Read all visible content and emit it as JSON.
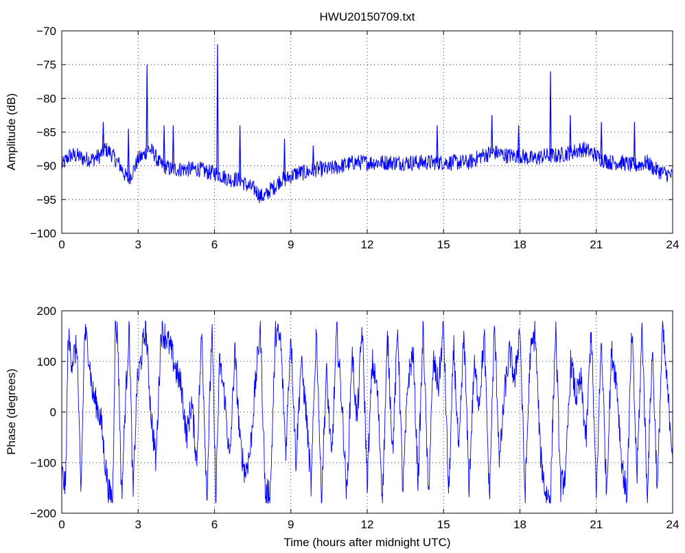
{
  "chart_data": [
    {
      "type": "line",
      "title": "HWU20150709.txt",
      "xlabel": "",
      "ylabel": "Amplitude (dB)",
      "xlim": [
        0,
        24
      ],
      "ylim": [
        -100,
        -70
      ],
      "xticks": [
        0,
        3,
        6,
        9,
        12,
        15,
        18,
        21,
        24
      ],
      "xtick_labels": [
        "0",
        "3",
        "6",
        "9",
        "12",
        "15",
        "18",
        "21",
        "24"
      ],
      "yticks": [
        -70,
        -75,
        -80,
        -85,
        -90,
        -95,
        -100
      ],
      "ytick_labels": [
        "−70",
        "−75",
        "−80",
        "−85",
        "−90",
        "−95",
        "−100"
      ],
      "grid": true,
      "line_color": "#0000ff",
      "series": [
        {
          "x": [
            0.0,
            0.3,
            0.6,
            0.9,
            1.2,
            1.5,
            1.7,
            1.9,
            2.1,
            2.3,
            2.5,
            2.6,
            2.7,
            2.9,
            3.0,
            3.2,
            3.4,
            3.6,
            3.8,
            4.0,
            4.3,
            4.6,
            5.0,
            5.4,
            5.8,
            6.0,
            6.3,
            6.6,
            7.0,
            7.3,
            7.6,
            7.8,
            8.0,
            8.2,
            8.4,
            8.6,
            8.8,
            9.0,
            9.3,
            9.6,
            10.0,
            10.5,
            11.0,
            11.5,
            12.0,
            12.5,
            13.0,
            13.5,
            14.0,
            14.5,
            15.0,
            15.5,
            16.0,
            16.5,
            17.0,
            17.5,
            18.0,
            18.5,
            19.0,
            19.5,
            20.0,
            20.5,
            20.8,
            21.2,
            21.6,
            22.0,
            22.5,
            23.0,
            23.3,
            23.6,
            24.0
          ],
          "y": [
            -90.0,
            -88.5,
            -88.5,
            -89.0,
            -89.0,
            -88.5,
            -87.5,
            -88.0,
            -89.0,
            -90.0,
            -91.5,
            -92.0,
            -91.5,
            -90.0,
            -89.0,
            -88.5,
            -87.5,
            -88.0,
            -89.5,
            -90.0,
            -90.5,
            -90.5,
            -90.5,
            -90.5,
            -91.0,
            -91.0,
            -91.5,
            -92.0,
            -92.0,
            -93.0,
            -93.5,
            -94.5,
            -94.5,
            -93.5,
            -93.0,
            -92.0,
            -92.0,
            -91.5,
            -91.0,
            -91.0,
            -90.5,
            -90.5,
            -90.0,
            -89.5,
            -89.5,
            -89.5,
            -89.5,
            -89.5,
            -89.5,
            -89.5,
            -89.5,
            -89.5,
            -89.5,
            -88.5,
            -88.0,
            -88.5,
            -88.5,
            -89.0,
            -88.5,
            -88.5,
            -88.0,
            -87.5,
            -88.0,
            -89.0,
            -89.5,
            -89.5,
            -90.0,
            -89.5,
            -90.5,
            -91.0,
            -91.5
          ]
        }
      ],
      "peaks": [
        {
          "x": 1.63,
          "y": -83.5
        },
        {
          "x": 2.62,
          "y": -84.5
        },
        {
          "x": 3.35,
          "y": -75.0
        },
        {
          "x": 4.02,
          "y": -84.0
        },
        {
          "x": 4.38,
          "y": -84.0
        },
        {
          "x": 6.12,
          "y": -72.0
        },
        {
          "x": 7.0,
          "y": -84.0
        },
        {
          "x": 8.75,
          "y": -86.0
        },
        {
          "x": 9.88,
          "y": -87.0
        },
        {
          "x": 14.75,
          "y": -84.0
        },
        {
          "x": 16.9,
          "y": -82.5
        },
        {
          "x": 17.95,
          "y": -84.0
        },
        {
          "x": 19.2,
          "y": -76.0
        },
        {
          "x": 19.98,
          "y": -82.5
        },
        {
          "x": 21.2,
          "y": -83.5
        },
        {
          "x": 22.5,
          "y": -83.5
        }
      ]
    },
    {
      "type": "line",
      "title": "",
      "xlabel": "Time (hours after midnight UTC)",
      "ylabel": "Phase (degrees)",
      "xlim": [
        0,
        24
      ],
      "ylim": [
        -200,
        200
      ],
      "xticks": [
        0,
        3,
        6,
        9,
        12,
        15,
        18,
        21,
        24
      ],
      "xtick_labels": [
        "0",
        "3",
        "6",
        "9",
        "12",
        "15",
        "18",
        "21",
        "24"
      ],
      "yticks": [
        200,
        100,
        0,
        -100,
        -200
      ],
      "ytick_labels": [
        "200",
        "100",
        "0",
        "−100",
        "−200"
      ],
      "grid": true,
      "line_color": "#0000ff",
      "series": [
        {
          "x": [
            0.0,
            0.15,
            0.25,
            0.4,
            0.6,
            0.75,
            0.9,
            1.05,
            1.2,
            1.4,
            1.55,
            1.7,
            1.85,
            2.0,
            2.1,
            2.2,
            2.35,
            2.5,
            2.65,
            2.8,
            2.95,
            3.1,
            3.3,
            3.5,
            3.7,
            3.9,
            4.1,
            4.3,
            4.5,
            4.7,
            4.9,
            5.1,
            5.3,
            5.5,
            5.7,
            5.9,
            6.05,
            6.2,
            6.4,
            6.6,
            6.8,
            7.0,
            7.2,
            7.4,
            7.6,
            7.8,
            8.0,
            8.2,
            8.4,
            8.6,
            8.8,
            9.0,
            9.2,
            9.4,
            9.6,
            9.8,
            10.0,
            10.2,
            10.4,
            10.6,
            10.8,
            11.0,
            11.2,
            11.4,
            11.6,
            11.8,
            12.0,
            12.2,
            12.4,
            12.6,
            12.8,
            13.0,
            13.2,
            13.4,
            13.6,
            13.8,
            14.0,
            14.2,
            14.4,
            14.6,
            14.8,
            15.0,
            15.2,
            15.4,
            15.6,
            15.8,
            16.0,
            16.2,
            16.4,
            16.6,
            16.8,
            17.0,
            17.2,
            17.4,
            17.6,
            17.8,
            18.0,
            18.2,
            18.4,
            18.6,
            18.8,
            19.0,
            19.2,
            19.4,
            19.6,
            19.8,
            20.0,
            20.2,
            20.4,
            20.6,
            20.8,
            21.0,
            21.2,
            21.4,
            21.6,
            21.8,
            22.0,
            22.2,
            22.4,
            22.6,
            22.8,
            23.0,
            23.2,
            23.4,
            23.6,
            23.8,
            24.0
          ],
          "y": [
            -120,
            -150,
            150,
            100,
            130,
            -170,
            160,
            120,
            40,
            10,
            -20,
            -100,
            -160,
            -170,
            170,
            150,
            -170,
            20,
            170,
            -170,
            50,
            100,
            170,
            0,
            -100,
            160,
            150,
            120,
            80,
            50,
            -50,
            20,
            -100,
            160,
            -170,
            170,
            -170,
            100,
            30,
            -100,
            120,
            -60,
            -120,
            -80,
            50,
            170,
            -170,
            -150,
            160,
            140,
            -80,
            160,
            -100,
            100,
            0,
            -150,
            170,
            -170,
            80,
            -100,
            160,
            20,
            -170,
            120,
            -20,
            170,
            -140,
            100,
            40,
            -170,
            150,
            -80,
            170,
            -160,
            60,
            120,
            -140,
            170,
            -170,
            100,
            50,
            170,
            -170,
            130,
            -90,
            160,
            -150,
            90,
            20,
            150,
            -170,
            170,
            -100,
            40,
            120,
            60,
            170,
            -170,
            110,
            160,
            -80,
            -160,
            -170,
            170,
            -150,
            -120,
            100,
            30,
            60,
            -60,
            170,
            -170,
            150,
            -160,
            120,
            60,
            -100,
            -170,
            160,
            -130,
            170,
            -170,
            130,
            -160,
            170,
            40,
            -80
          ]
        }
      ]
    }
  ]
}
